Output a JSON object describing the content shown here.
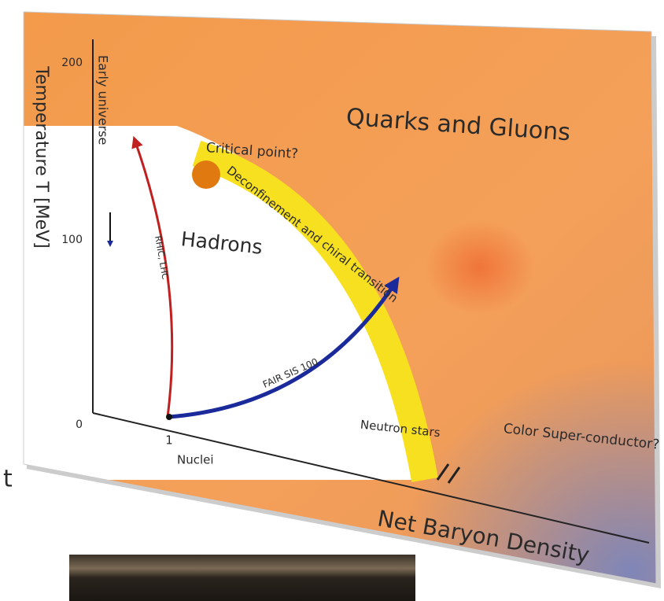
{
  "edge_letter": "t",
  "axis": {
    "y_label": "Temperature T [MeV]",
    "y_ticks": [
      "200",
      "100",
      "0"
    ],
    "x_tick": "1",
    "x_tick_label": "Nuclei",
    "x_label": "Net Baryon Density"
  },
  "regions": {
    "plasma": "Quarks and Gluons",
    "hadrons": "Hadrons",
    "color_superconductor": "Color Super-conductor?",
    "neutron_stars": "Neutron stars"
  },
  "annotations": {
    "critical_point": "Critical point?",
    "transition": "Deconfinement and chiral transition",
    "early_universe": "Early universe",
    "rhic_lhc": "RHIC, LHC",
    "fair": "FAIR SIS 100"
  }
}
